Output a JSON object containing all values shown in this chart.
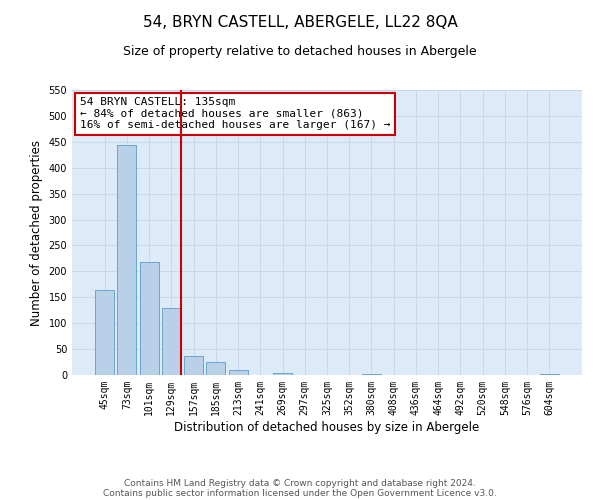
{
  "title": "54, BRYN CASTELL, ABERGELE, LL22 8QA",
  "subtitle": "Size of property relative to detached houses in Abergele",
  "xlabel": "Distribution of detached houses by size in Abergele",
  "ylabel": "Number of detached properties",
  "categories": [
    "45sqm",
    "73sqm",
    "101sqm",
    "129sqm",
    "157sqm",
    "185sqm",
    "213sqm",
    "241sqm",
    "269sqm",
    "297sqm",
    "325sqm",
    "352sqm",
    "380sqm",
    "408sqm",
    "436sqm",
    "464sqm",
    "492sqm",
    "520sqm",
    "548sqm",
    "576sqm",
    "604sqm"
  ],
  "values": [
    165,
    443,
    219,
    130,
    37,
    26,
    9,
    0,
    4,
    0,
    0,
    0,
    2,
    0,
    0,
    0,
    0,
    0,
    0,
    0,
    2
  ],
  "bar_color": "#b8d0e8",
  "bar_edge_color": "#5a9fc8",
  "grid_color": "#c8d8e8",
  "vline_color": "#cc0000",
  "vline_x": 3.43,
  "annotation_text": "54 BRYN CASTELL: 135sqm\n← 84% of detached houses are smaller (863)\n16% of semi-detached houses are larger (167) →",
  "annotation_box_color": "#cc0000",
  "annotation_text_color": "#000000",
  "ylim": [
    0,
    550
  ],
  "yticks": [
    0,
    50,
    100,
    150,
    200,
    250,
    300,
    350,
    400,
    450,
    500,
    550
  ],
  "background_color": "#ffffff",
  "plot_bg_color": "#ddeaf7",
  "footer_line1": "Contains HM Land Registry data © Crown copyright and database right 2024.",
  "footer_line2": "Contains public sector information licensed under the Open Government Licence v3.0.",
  "title_fontsize": 11,
  "subtitle_fontsize": 9,
  "xlabel_fontsize": 8.5,
  "ylabel_fontsize": 8.5,
  "tick_fontsize": 7,
  "annotation_fontsize": 8,
  "footer_fontsize": 6.5
}
